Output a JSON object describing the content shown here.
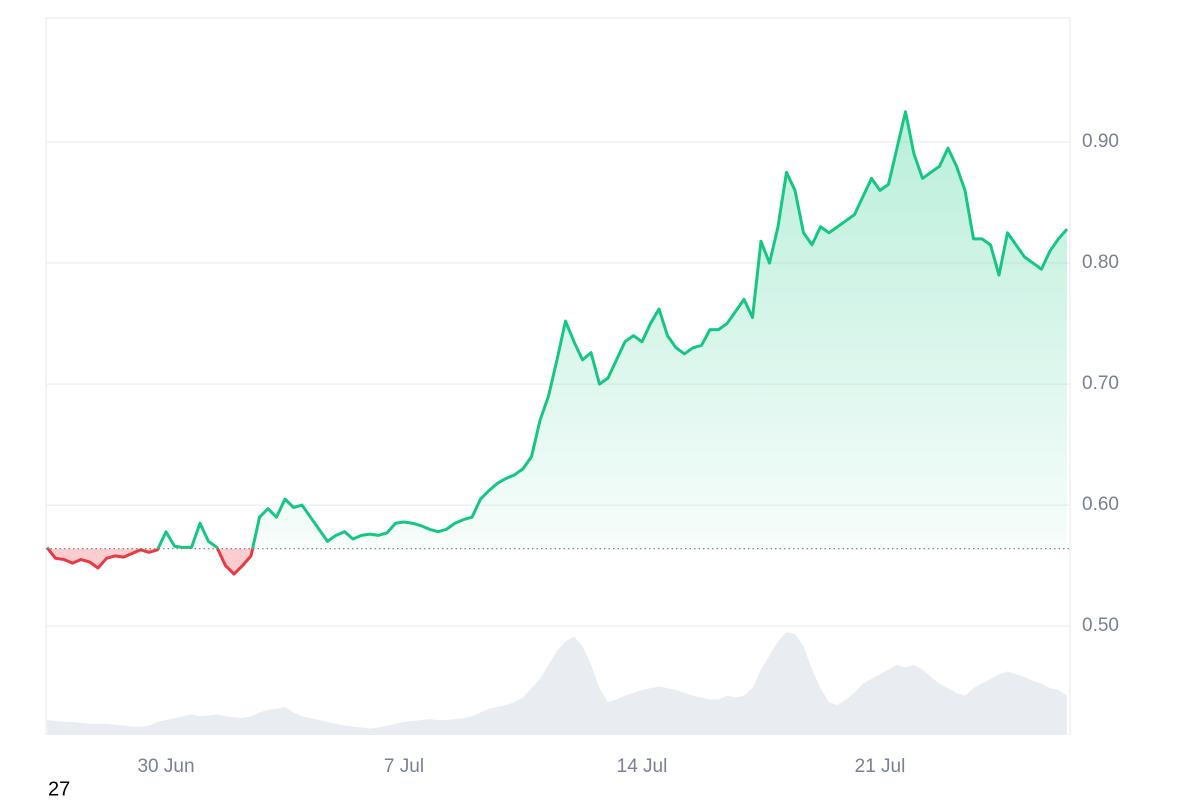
{
  "chart_data": {
    "type": "line",
    "categories": [
      null,
      null,
      null,
      null,
      null,
      null,
      null,
      null,
      null,
      null,
      null,
      null,
      null,
      null,
      "30 Jun",
      null,
      null,
      null,
      null,
      null,
      null,
      null,
      null,
      null,
      null,
      null,
      null,
      null,
      null,
      null,
      null,
      null,
      null,
      null,
      null,
      null,
      null,
      null,
      null,
      null,
      null,
      null,
      "7 Jul",
      null,
      null,
      null,
      null,
      null,
      null,
      null,
      null,
      null,
      null,
      null,
      null,
      null,
      null,
      null,
      null,
      null,
      null,
      null,
      null,
      null,
      null,
      null,
      null,
      null,
      null,
      null,
      "14 Jul",
      null,
      null,
      null,
      null,
      null,
      null,
      null,
      null,
      null,
      null,
      null,
      null,
      null,
      null,
      null,
      null,
      null,
      null,
      null,
      null,
      null,
      null,
      null,
      null,
      null,
      null,
      null,
      "21 Jul",
      null,
      null,
      null,
      null,
      null,
      null,
      null,
      null,
      null,
      null,
      null,
      null,
      null,
      null,
      null,
      null,
      null,
      null,
      null,
      null,
      null,
      null
    ],
    "values": [
      0.565,
      0.556,
      0.555,
      0.552,
      0.555,
      0.553,
      0.548,
      0.556,
      0.558,
      0.557,
      0.56,
      0.563,
      0.561,
      0.563,
      0.578,
      0.566,
      0.565,
      0.565,
      0.585,
      0.57,
      0.565,
      0.55,
      0.543,
      0.55,
      0.558,
      0.59,
      0.597,
      0.59,
      0.605,
      0.598,
      0.6,
      0.59,
      0.58,
      0.57,
      0.575,
      0.578,
      0.572,
      0.575,
      0.576,
      0.575,
      0.577,
      0.585,
      0.586,
      0.585,
      0.583,
      0.58,
      0.578,
      0.58,
      0.585,
      0.588,
      0.59,
      0.605,
      0.612,
      0.618,
      0.622,
      0.625,
      0.63,
      0.64,
      0.67,
      0.69,
      0.72,
      0.752,
      0.735,
      0.72,
      0.726,
      0.7,
      0.705,
      0.72,
      0.735,
      0.74,
      0.735,
      0.75,
      0.762,
      0.74,
      0.73,
      0.725,
      0.73,
      0.732,
      0.745,
      0.745,
      0.75,
      0.76,
      0.77,
      0.755,
      0.818,
      0.8,
      0.83,
      0.875,
      0.86,
      0.825,
      0.815,
      0.83,
      0.825,
      0.83,
      0.835,
      0.84,
      0.855,
      0.87,
      0.86,
      0.865,
      0.895,
      0.925,
      0.89,
      0.87,
      0.875,
      0.88,
      0.895,
      0.88,
      0.86,
      0.82,
      0.82,
      0.815,
      0.79,
      0.825,
      0.815,
      0.805,
      0.8,
      0.795,
      0.81,
      0.82,
      0.828
    ],
    "volume": [
      16,
      15,
      14,
      14,
      13,
      12,
      12,
      12,
      11,
      10,
      9,
      9,
      10,
      14,
      16,
      18,
      20,
      22,
      20,
      21,
      22,
      20,
      19,
      18,
      20,
      24,
      27,
      28,
      30,
      24,
      20,
      18,
      16,
      14,
      12,
      10,
      9,
      8,
      7,
      8,
      10,
      12,
      14,
      15,
      16,
      17,
      16,
      16,
      17,
      18,
      20,
      24,
      28,
      30,
      32,
      35,
      40,
      50,
      60,
      75,
      90,
      100,
      105,
      95,
      75,
      50,
      35,
      38,
      42,
      45,
      48,
      50,
      52,
      50,
      48,
      45,
      42,
      40,
      38,
      38,
      42,
      40,
      42,
      50,
      70,
      85,
      100,
      110,
      108,
      95,
      70,
      50,
      35,
      32,
      38,
      45,
      55,
      60,
      65,
      70,
      75,
      72,
      75,
      70,
      62,
      55,
      50,
      45,
      42,
      50,
      55,
      60,
      65,
      68,
      65,
      62,
      58,
      55,
      50,
      48,
      42
    ],
    "baseline": 0.564,
    "up_color": "#16c784",
    "down_color": "#ea3943",
    "volume_color": "#e9edf1",
    "ylim": [
      0.41,
      1.0025
    ],
    "yticks": [
      {
        "value": 0.5,
        "label": "0.50"
      },
      {
        "value": 0.6,
        "label": "0.60"
      },
      {
        "value": 0.7,
        "label": "0.70"
      },
      {
        "value": 0.8,
        "label": "0.80"
      },
      {
        "value": 0.9,
        "label": "0.90"
      }
    ],
    "grid": true,
    "annotation": "27"
  }
}
